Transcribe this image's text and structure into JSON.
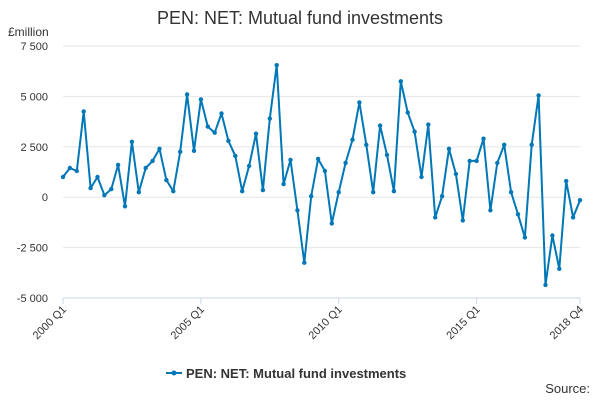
{
  "chart_data": {
    "type": "line",
    "title": "PEN: NET: Mutual fund investments",
    "ylabel": "£million",
    "xlabel": "",
    "ylim": [
      -5000,
      7500
    ],
    "yticks": [
      -5000,
      -2500,
      0,
      2500,
      5000,
      7500
    ],
    "ytick_labels": [
      "-5 000",
      "-2 500",
      "0",
      "2 500",
      "5 000",
      "7 500"
    ],
    "x_start": "2000 Q1",
    "x_end": "2018 Q4",
    "xticks": [
      "2000 Q1",
      "2005 Q1",
      "2010 Q1",
      "2015 Q1",
      "2018 Q4"
    ],
    "grid": true,
    "legend": "bottom-center",
    "series": [
      {
        "name": "PEN: NET: Mutual fund investments",
        "color": "#0077b6",
        "values": [
          1000,
          1450,
          1300,
          4250,
          450,
          1000,
          100,
          400,
          1600,
          -450,
          2750,
          250,
          1450,
          1800,
          2400,
          850,
          300,
          2250,
          5100,
          2300,
          4850,
          3500,
          3200,
          4150,
          2800,
          2050,
          300,
          1550,
          3150,
          350,
          3900,
          6550,
          650,
          1850,
          -650,
          -3250,
          50,
          1900,
          1300,
          -1300,
          250,
          1700,
          2850,
          4700,
          2600,
          250,
          3550,
          2100,
          300,
          5750,
          4200,
          3250,
          1000,
          3600,
          -1000,
          50,
          2400,
          1150,
          -1150,
          1800,
          1800,
          2900,
          -650,
          1700,
          2600,
          250,
          -850,
          -2000,
          2600,
          5050,
          -4350,
          -1900,
          -3550,
          800,
          -1000,
          -150
        ]
      }
    ]
  },
  "source_label": "Source:"
}
